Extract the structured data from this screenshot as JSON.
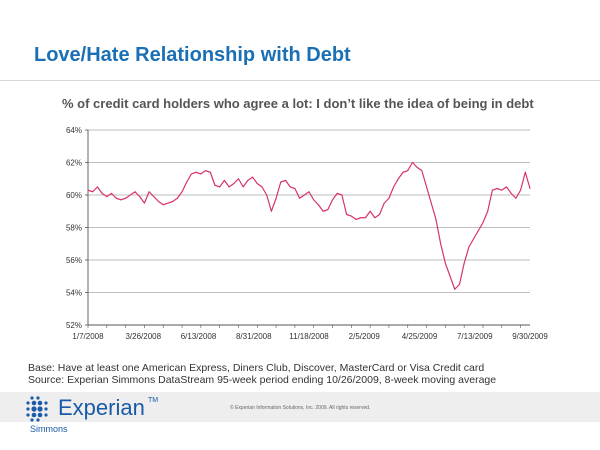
{
  "header": {
    "title": "Love/Hate Relationship with Debt"
  },
  "chart_data": {
    "type": "line",
    "title": "% of credit card holders who agree a lot: I don’t like the idea of being in debt",
    "xlabel": "",
    "ylabel": "",
    "ylim": [
      52,
      64
    ],
    "y_ticks": [
      "52%",
      "54%",
      "56%",
      "58%",
      "60%",
      "62%",
      "64%"
    ],
    "x_tick_labels": [
      "1/7/2008",
      "3/26/2008",
      "6/13/2008",
      "8/31/2008",
      "11/18/2008",
      "2/5/2009",
      "4/25/2009",
      "7/13/2009",
      "9/30/2009"
    ],
    "x_count": 95,
    "grid": true,
    "line_color": "#d6336c",
    "series": [
      {
        "values": [
          60.3,
          60.2,
          60.5,
          60.1,
          59.9,
          60.1,
          59.8,
          59.7,
          59.8,
          60.0,
          60.2,
          59.9,
          59.5,
          60.2,
          59.9,
          59.6,
          59.4,
          59.5,
          59.6,
          59.8,
          60.2,
          60.8,
          61.3,
          61.4,
          61.3,
          61.5,
          61.4,
          60.6,
          60.5,
          60.9,
          60.5,
          60.7,
          61.0,
          60.5,
          60.9,
          61.1,
          60.7,
          60.5,
          60.0,
          59.0,
          59.8,
          60.8,
          60.9,
          60.5,
          60.4,
          59.8,
          60.0,
          60.2,
          59.7,
          59.4,
          59.0,
          59.1,
          59.7,
          60.1,
          60.0,
          58.8,
          58.7,
          58.5,
          58.6,
          58.6,
          59.0,
          58.6,
          58.8,
          59.5,
          59.8,
          60.5,
          61.0,
          61.4,
          61.5,
          62.0,
          61.7,
          61.5,
          60.5,
          59.5,
          58.5,
          57.0,
          55.8,
          55.0,
          54.2,
          54.5,
          55.8,
          56.8,
          57.3,
          57.8,
          58.3,
          59.0,
          60.3,
          60.4,
          60.3,
          60.5,
          60.1,
          59.8,
          60.3,
          61.4,
          60.4
        ]
      }
    ]
  },
  "notes": {
    "base": "Base: Have at least one American Express, Diners Club, Discover, MasterCard or Visa Credit card",
    "source": "Source: Experian Simmons DataStream 95-week period ending 10/26/2009, 8-week moving average"
  },
  "footer": {
    "logo_text": "Experian",
    "logo_tm": "TM",
    "logo_sub": "Simmons",
    "copyright": "© Experian Information Solutions, Inc. 2009.   All rights reserved."
  }
}
